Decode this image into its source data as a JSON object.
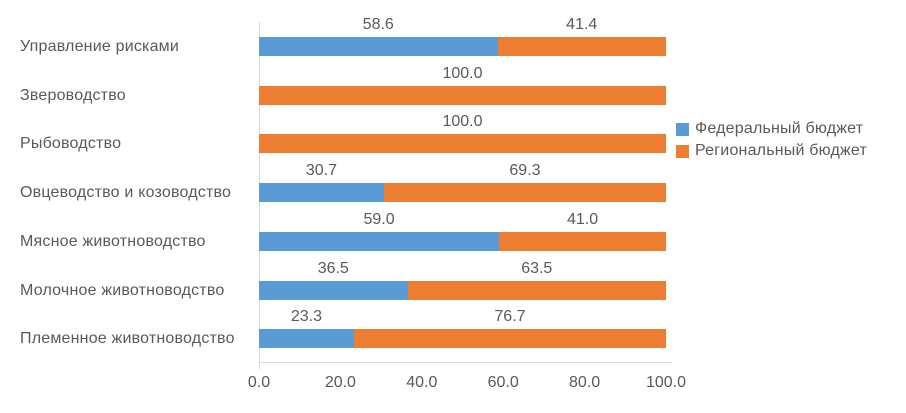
{
  "chart_data": {
    "type": "bar",
    "orientation": "horizontal",
    "stacked": true,
    "title": "",
    "xlabel": "",
    "ylabel": "",
    "categories": [
      "Управление рисками",
      "Звероводство",
      "Рыбоводство",
      "Овцеводство и козоводство",
      "Мясное животноводство",
      "Молочное животноводство",
      "Племенное животноводство"
    ],
    "series": [
      {
        "name": "Федеральный бюджет",
        "color": "#5B9BD5",
        "values": [
          58.6,
          0,
          0,
          30.7,
          59.0,
          36.5,
          23.3
        ],
        "labels": [
          "58.6",
          "",
          "",
          "30.7",
          "59.0",
          "36.5",
          "23.3"
        ]
      },
      {
        "name": "Региональный бюджет",
        "color": "#ED7D31",
        "values": [
          41.4,
          100.0,
          100.0,
          69.3,
          41.0,
          63.5,
          76.7
        ],
        "labels": [
          "41.4",
          "100.0",
          "100.0",
          "69.3",
          "41.0",
          "63.5",
          "76.7"
        ]
      }
    ],
    "x_ticks": [
      {
        "label": "0.0",
        "value": 0
      },
      {
        "label": "20.0",
        "value": 20
      },
      {
        "label": "40.0",
        "value": 40
      },
      {
        "label": "60.0",
        "value": 60
      },
      {
        "label": "80.0",
        "value": 80
      },
      {
        "label": "100.0",
        "value": 100
      }
    ],
    "xlim": [
      0,
      100
    ],
    "legend_position": "right",
    "grid": false,
    "colors": {
      "text": "#595959",
      "axis_line": "#D9D9D9",
      "background": "#FFFFFF"
    }
  }
}
